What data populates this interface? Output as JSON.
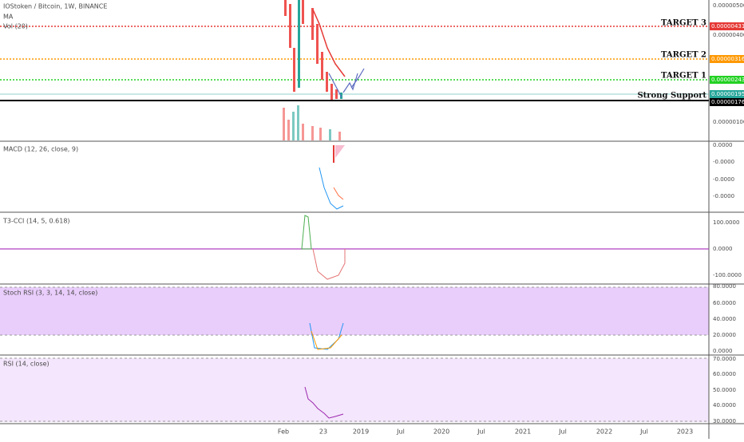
{
  "header": {
    "title": "IOStoken / Bitcoin, 1W, BINANCE",
    "ma": "MA",
    "vol": "Vol (20)"
  },
  "targets": [
    {
      "label": "TARGET 3",
      "price": "0.00000431"
    },
    {
      "label": "TARGET 2",
      "price": "0.00000316"
    },
    {
      "label": "TARGET 1",
      "price": "0.00000243"
    },
    {
      "label": "Strong Support",
      "price": "0.00000176"
    }
  ],
  "current_price": "0.00000195",
  "main_axis": [
    "0.00000500",
    "0.00000400",
    "0.00000100"
  ],
  "panes": [
    {
      "label": "MACD (12, 26, close, 9)",
      "axis": [
        "0.0000",
        "-0.0000",
        "-0.0000",
        "-0.0000"
      ]
    },
    {
      "label": "T3-CCI (14, 5, 0.618)",
      "axis": [
        "100.0000",
        "0.0000",
        "-100.0000"
      ]
    },
    {
      "label": "Stoch RSI (3, 3, 14, 14, close)",
      "axis": [
        "80.0000",
        "60.0000",
        "40.0000",
        "20.0000",
        "0.0000"
      ]
    },
    {
      "label": "RSI (14, close)",
      "axis": [
        "70.0000",
        "60.0000",
        "50.0000",
        "40.0000",
        "30.0000"
      ]
    }
  ],
  "time_axis": [
    "Feb",
    "23",
    "2019",
    "Jul",
    "2020",
    "Jul",
    "2021",
    "Jul",
    "2022",
    "Jul",
    "2023"
  ]
}
